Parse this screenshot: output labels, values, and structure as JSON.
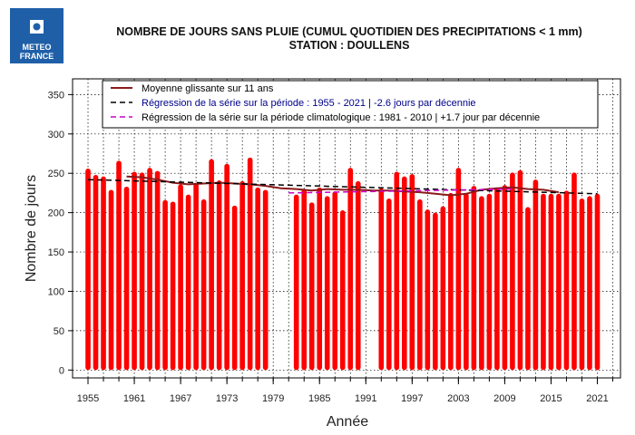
{
  "logo": {
    "line1": "METEO",
    "line2": "FRANCE"
  },
  "header": {
    "title_line1": "NOMBRE DE JOURS SANS PLUIE (CUMUL QUOTIDIEN DES PRECIPITATIONS < 1 mm)",
    "title_line2": "STATION : DOULLENS"
  },
  "colors": {
    "bars": "#ff0000",
    "moving_average": "#8b1a1a",
    "regression_period": "#000000",
    "regression_climatological": "#cc00cc",
    "legend_text_blue": "#00008b"
  },
  "chart_data": {
    "type": "bar",
    "title": "NOMBRE DE JOURS SANS PLUIE (CUMUL QUOTIDIEN DES PRECIPITATIONS < 1 mm)",
    "subtitle": "STATION : DOULLENS",
    "xlabel": "Année",
    "ylabel": "Nombre de jours",
    "xlim": [
      1953,
      2024
    ],
    "ylim": [
      -10,
      370
    ],
    "x_ticks": [
      1955,
      1961,
      1967,
      1973,
      1979,
      1985,
      1991,
      1997,
      2003,
      2009,
      2015,
      2021
    ],
    "y_ticks": [
      0,
      50,
      100,
      150,
      200,
      250,
      300,
      350
    ],
    "grid": true,
    "legend_position": "top",
    "bars": {
      "x": [
        1955,
        1956,
        1957,
        1958,
        1959,
        1960,
        1961,
        1962,
        1963,
        1964,
        1965,
        1966,
        1967,
        1968,
        1969,
        1970,
        1971,
        1972,
        1973,
        1974,
        1975,
        1976,
        1977,
        1978,
        1982,
        1983,
        1984,
        1985,
        1986,
        1987,
        1988,
        1989,
        1990,
        1993,
        1994,
        1995,
        1996,
        1997,
        1998,
        1999,
        2000,
        2001,
        2002,
        2003,
        2004,
        2005,
        2006,
        2007,
        2008,
        2009,
        2010,
        2011,
        2012,
        2013,
        2014,
        2015,
        2016,
        2017,
        2018,
        2019,
        2020,
        2021
      ],
      "values": [
        256,
        248,
        246,
        229,
        266,
        233,
        252,
        251,
        257,
        253,
        216,
        214,
        236,
        223,
        238,
        217,
        268,
        241,
        262,
        209,
        240,
        270,
        232,
        229,
        223,
        230,
        213,
        232,
        221,
        227,
        203,
        257,
        240,
        231,
        218,
        252,
        246,
        249,
        217,
        204,
        200,
        208,
        225,
        257,
        225,
        234,
        221,
        224,
        232,
        235,
        251,
        254,
        207,
        242,
        224,
        224,
        224,
        228,
        251,
        218,
        221,
        224
      ]
    },
    "series": [
      {
        "name": "Moyenne glissante sur 11 ans",
        "type": "line",
        "x": [
          1960,
          1962,
          1964,
          1966,
          1968,
          1970,
          1972,
          1974,
          1976,
          1978,
          1980,
          1982,
          1984,
          1986,
          1988,
          1990,
          1992,
          1994,
          1996,
          1998,
          2000,
          2002,
          2004,
          2006,
          2008,
          2010,
          2012,
          2014,
          2016
        ],
        "values": [
          246,
          245,
          242,
          238,
          236,
          237,
          238,
          237,
          236,
          234,
          231,
          230,
          228,
          230,
          229,
          229,
          228,
          228,
          227,
          226,
          224,
          222,
          224,
          229,
          231,
          232,
          230,
          229,
          226
        ]
      },
      {
        "name": "Régression de la série sur la période : 1955 - 2021 | -2.6 jours par décennie",
        "type": "line",
        "x": [
          1955,
          2021
        ],
        "values": [
          242,
          224
        ]
      },
      {
        "name": "Régression de la série sur la période climatologique : 1981 - 2010 | +1.7 jour par décennie",
        "type": "line",
        "x": [
          1981,
          2010
        ],
        "values": [
          225,
          230
        ]
      }
    ]
  }
}
